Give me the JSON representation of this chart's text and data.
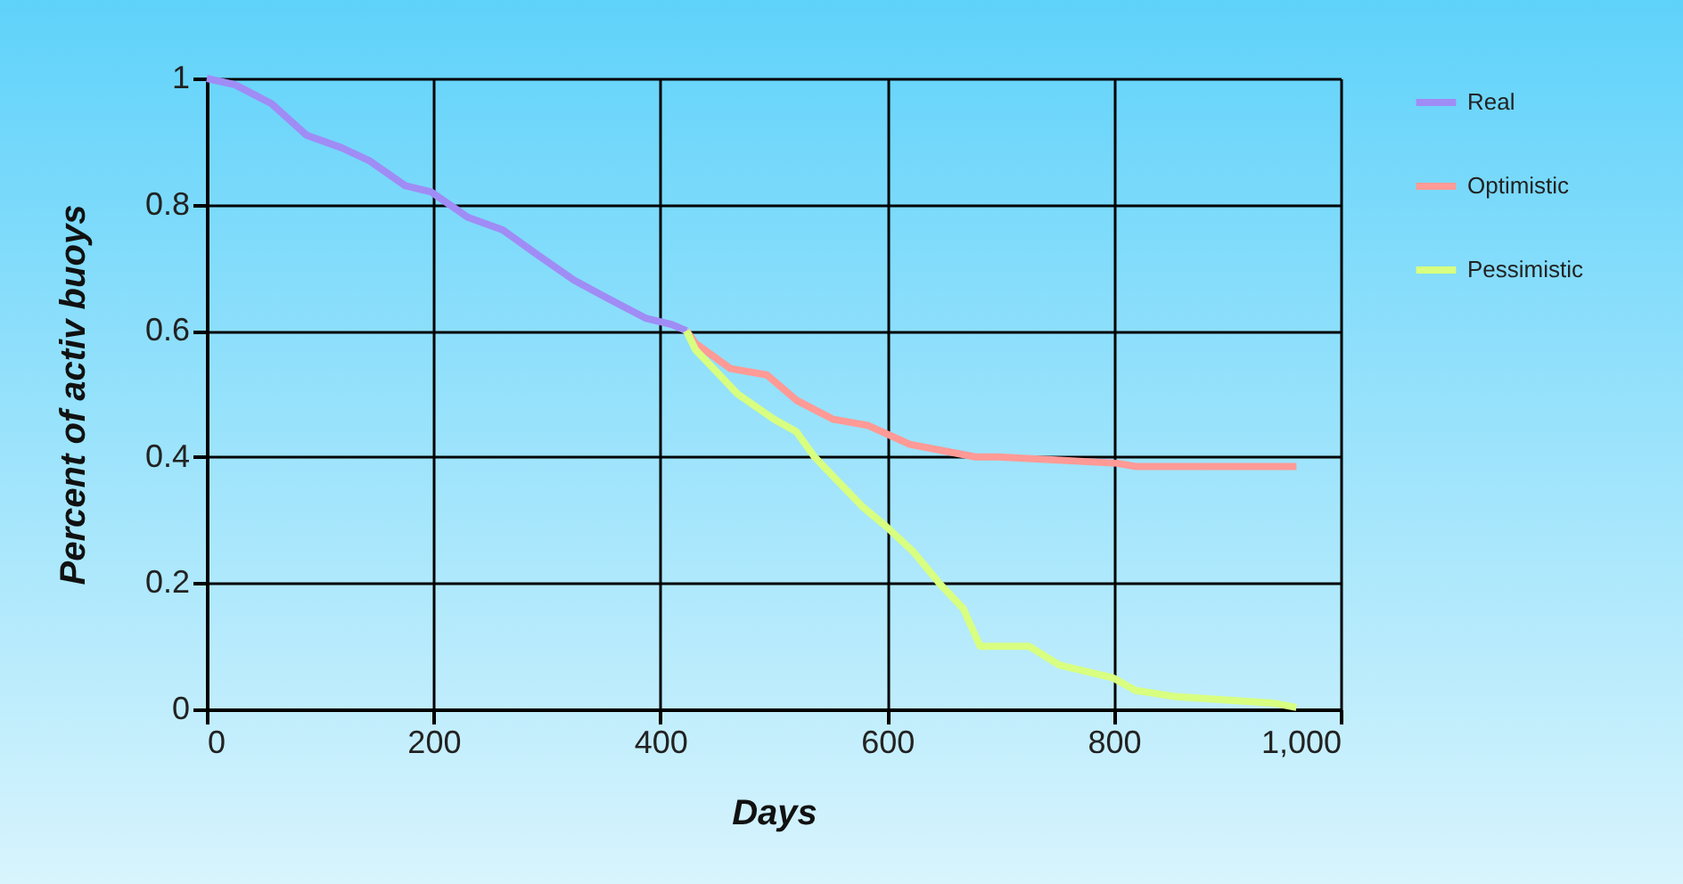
{
  "chart_data": {
    "type": "line",
    "xlabel": "Days",
    "ylabel": "Percent of activ buoys",
    "xlim": [
      0,
      1000
    ],
    "ylim": [
      0,
      1
    ],
    "xticks": [
      0,
      200,
      400,
      600,
      800,
      {
        "value": 1000,
        "label": "1,000"
      }
    ],
    "yticks": [
      0,
      0.2,
      0.4,
      0.6,
      0.8,
      1
    ],
    "grid": true,
    "legend": "right",
    "line_style": "solid",
    "series": [
      {
        "name": "Real",
        "color": "#a08cf5",
        "x": [
          0,
          25,
          57,
          88,
          119,
          143,
          175,
          198,
          230,
          261,
          292,
          324,
          355,
          387,
          410,
          423
        ],
        "values": [
          1,
          0.99,
          0.96,
          0.91,
          0.89,
          0.87,
          0.83,
          0.82,
          0.78,
          0.76,
          0.72,
          0.68,
          0.65,
          0.62,
          0.61,
          0.6
        ]
      },
      {
        "name": "Optimistic",
        "color": "#ff9a96",
        "x": [
          423,
          431,
          462,
          494,
          520,
          552,
          583,
          620,
          678,
          698,
          803,
          819,
          961
        ],
        "values": [
          0.6,
          0.58,
          0.54,
          0.53,
          0.49,
          0.46,
          0.45,
          0.42,
          0.4,
          0.4,
          0.39,
          0.385,
          0.385
        ]
      },
      {
        "name": "Pessimistic",
        "color": "#d8ff80",
        "x": [
          423,
          431,
          447,
          468,
          500,
          520,
          536,
          552,
          579,
          599,
          623,
          646,
          667,
          682,
          725,
          752,
          799,
          819,
          855,
          940,
          961
        ],
        "values": [
          0.6,
          0.57,
          0.54,
          0.5,
          0.46,
          0.44,
          0.4,
          0.37,
          0.32,
          0.29,
          0.25,
          0.2,
          0.16,
          0.1,
          0.1,
          0.07,
          0.05,
          0.03,
          0.02,
          0.01,
          0.003
        ]
      }
    ]
  }
}
